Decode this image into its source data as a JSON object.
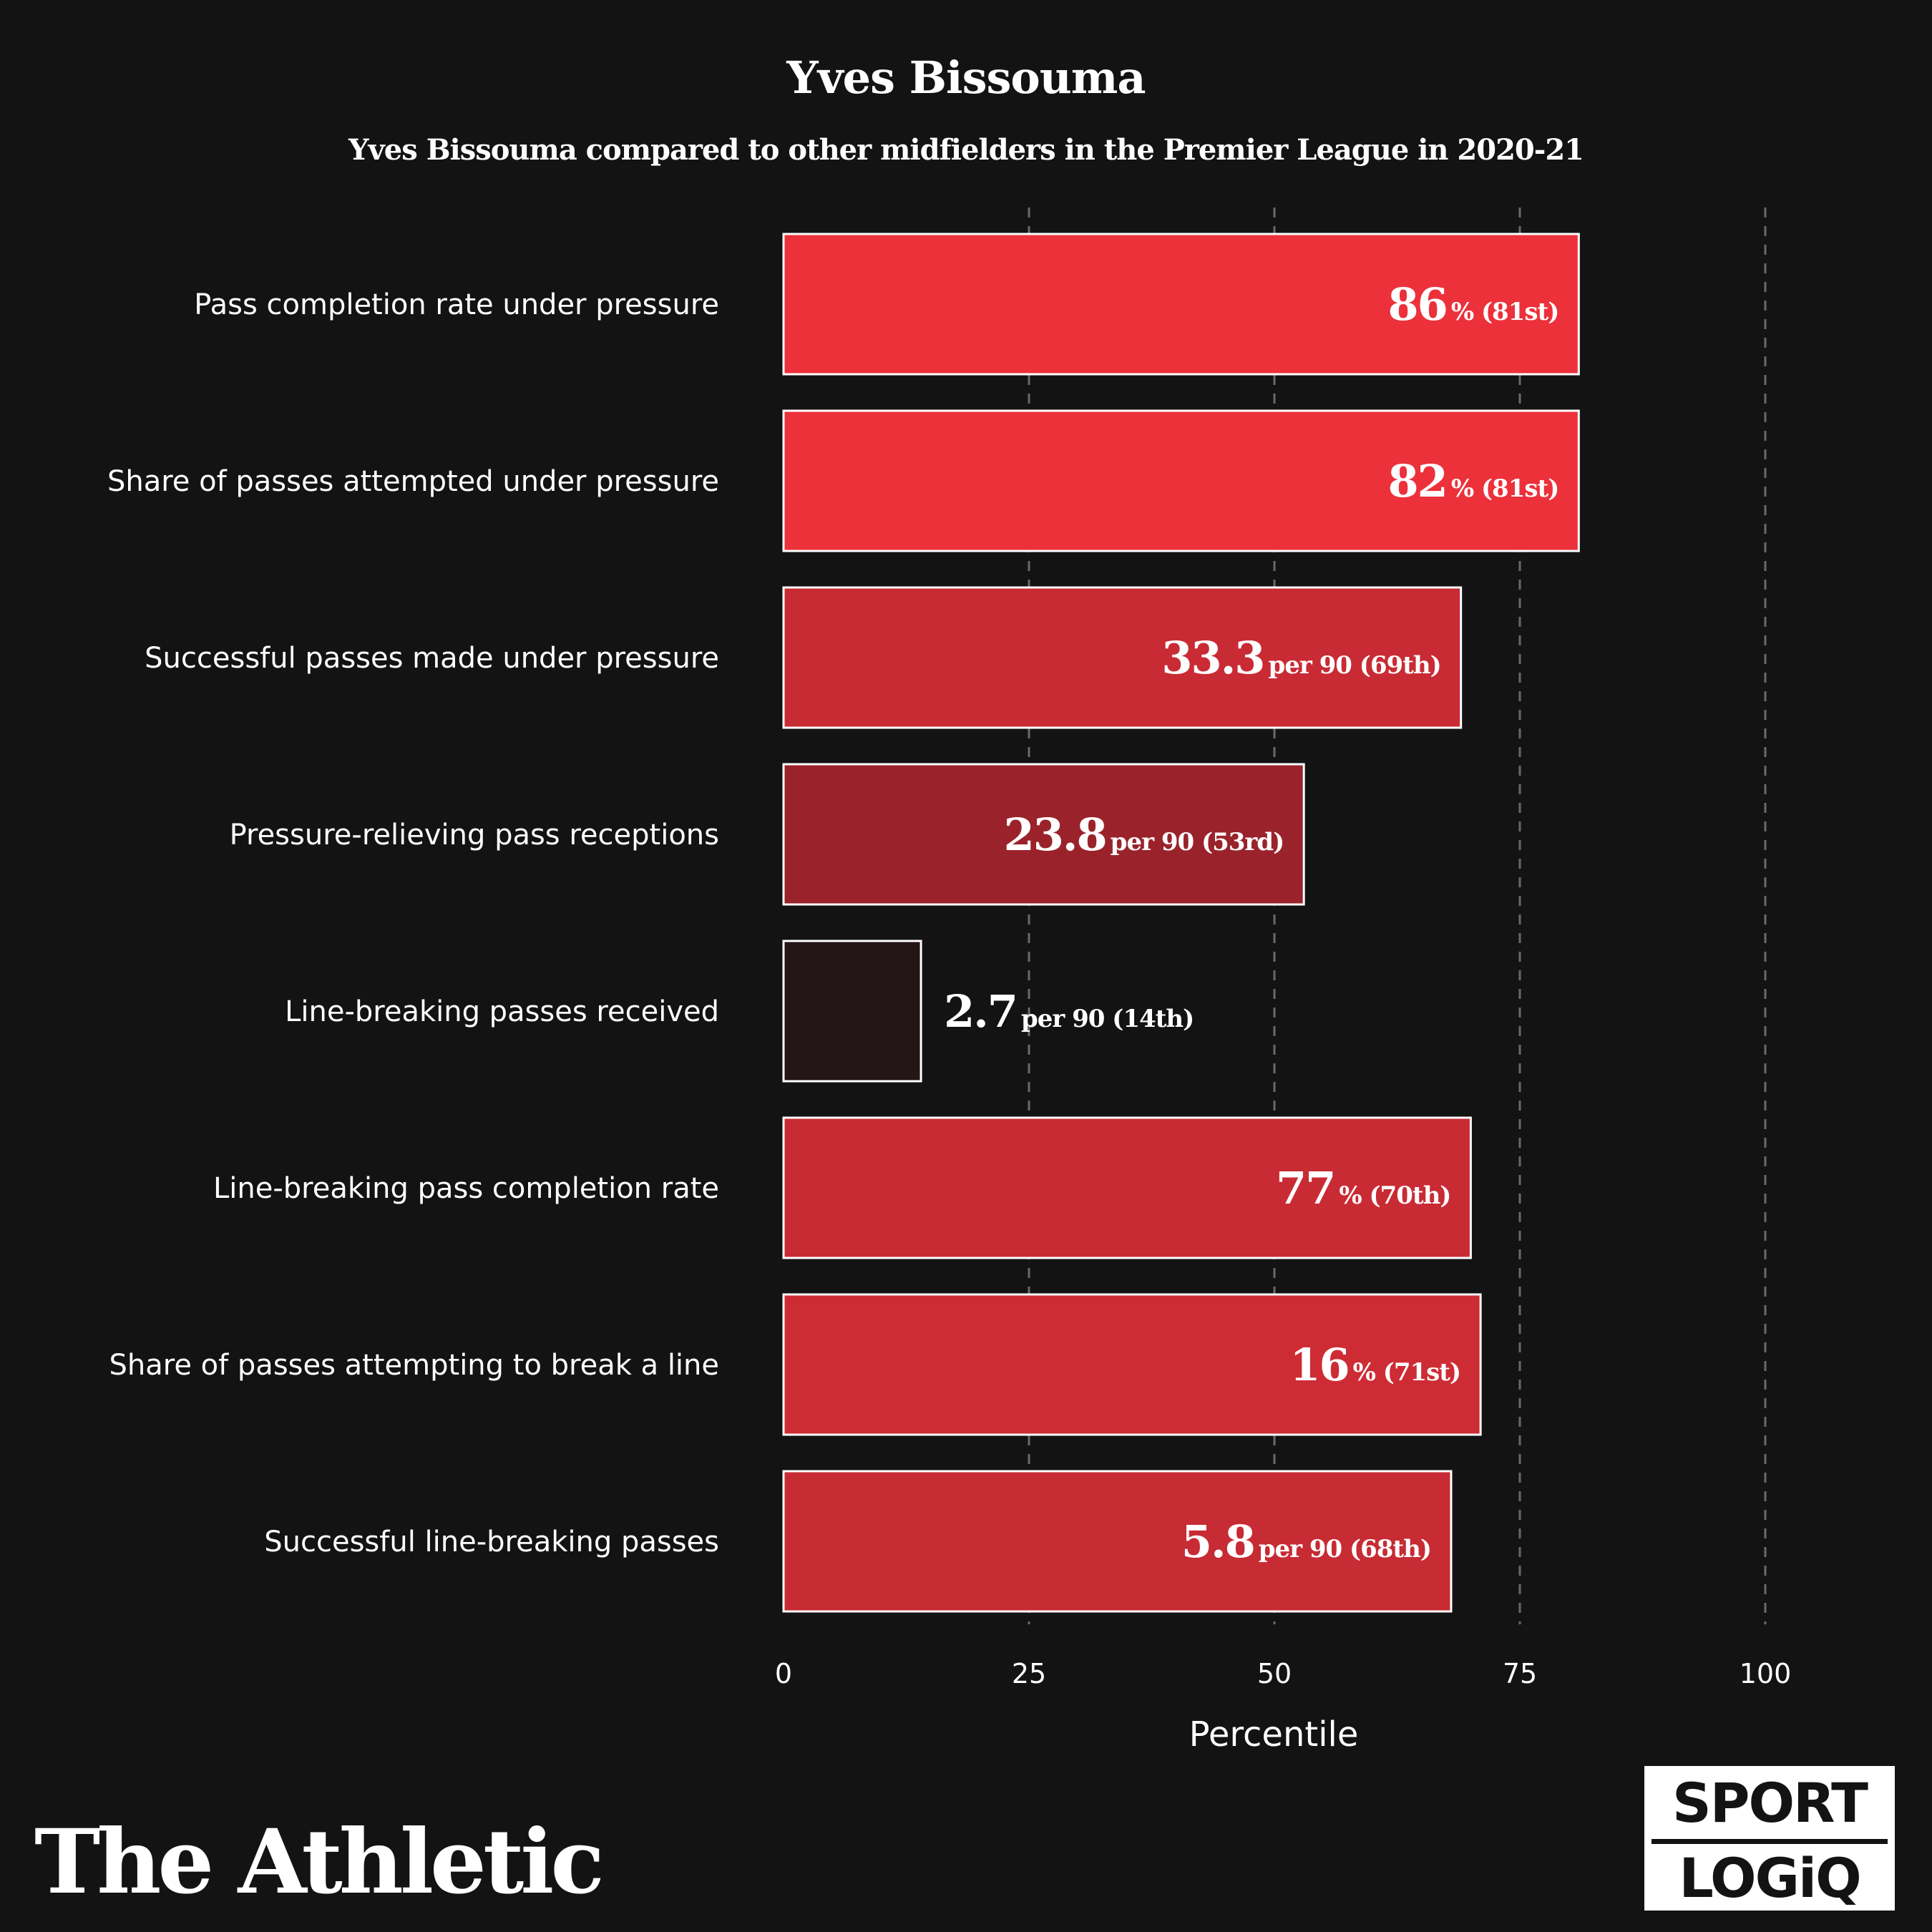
{
  "header": {
    "title": "Yves Bissouma",
    "subtitle": "Yves Bissouma compared to other midfielders in the Premier League in 2020-21"
  },
  "footer": {
    "brand": "The Athletic",
    "partner_line1": "SPORT",
    "partner_line2": "LOGiQ"
  },
  "chart_data": {
    "type": "bar",
    "orientation": "horizontal",
    "title": "Yves Bissouma",
    "subtitle": "Yves Bissouma compared to other midfielders in the Premier League in 2020-21",
    "xlabel": "Percentile",
    "ylabel": "",
    "xlim": [
      0,
      100
    ],
    "xticks": [
      0,
      25,
      50,
      75,
      100
    ],
    "grid": "vertical dashed at 25, 50, 75, 100",
    "categories": [
      "Pass completion rate under pressure",
      "Share of passes attempted under pressure",
      "Successful passes made under pressure",
      "Pressure-relieving pass receptions",
      "Line-breaking passes received",
      "Line-breaking pass completion rate",
      "Share of passes attempting to break a line",
      "Successful line-breaking passes"
    ],
    "values": [
      81,
      81,
      69,
      53,
      14,
      70,
      71,
      68
    ],
    "stat_values": [
      "86",
      "82",
      "33.3",
      "23.8",
      "2.7",
      "77",
      "16",
      "5.8"
    ],
    "stat_suffixes": [
      "% (81st)",
      "% (81st)",
      "per 90 (69th)",
      "per 90 (53rd)",
      "per 90 (14th)",
      "% (70th)",
      "% (71st)",
      "per 90 (68th)"
    ],
    "bar_colors": [
      "#ec313b",
      "#ec313b",
      "#c92b34",
      "#9a232b",
      "#241516",
      "#c92b34",
      "#ce2c35",
      "#c72b33"
    ]
  }
}
